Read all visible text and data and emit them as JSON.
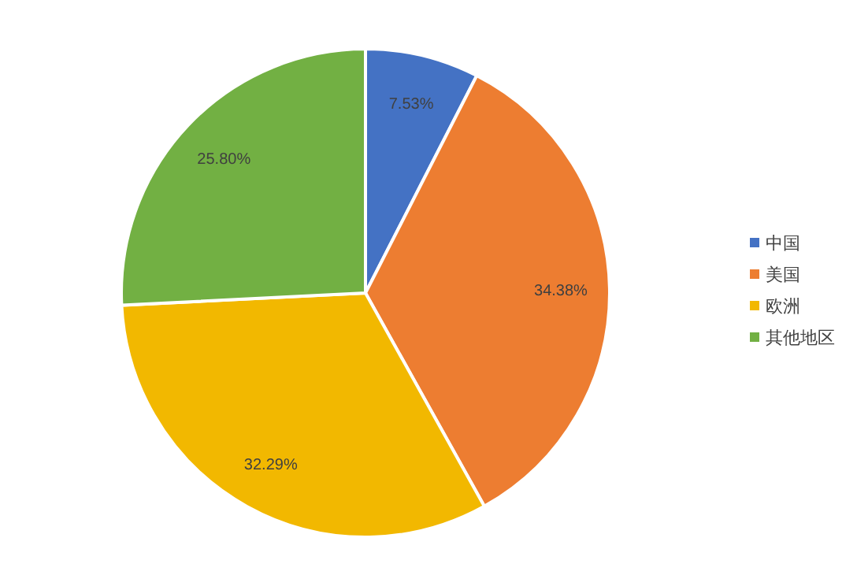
{
  "chart_data": {
    "type": "pie",
    "categories": [
      "中国",
      "美国",
      "欧洲",
      "其他地区"
    ],
    "values": [
      7.53,
      34.38,
      32.29,
      25.8
    ],
    "colors": [
      "#4472c4",
      "#ed7d31",
      "#f2b800",
      "#72b043"
    ],
    "value_labels": [
      "7.53%",
      "34.38%",
      "32.29%",
      "25.80%"
    ],
    "legend": "right"
  }
}
